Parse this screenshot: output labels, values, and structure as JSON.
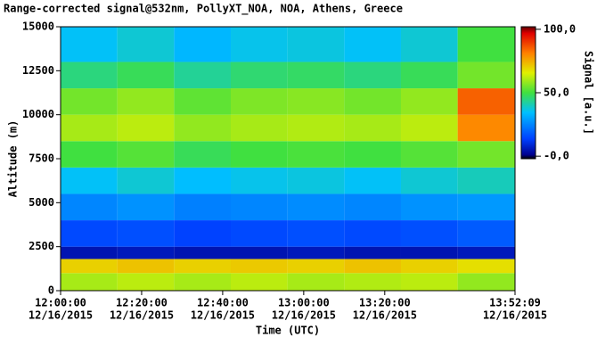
{
  "chart_data": {
    "type": "heatmap",
    "title": "Range-corrected signal@532nm, PollyXT_NOA, NOA, Athens, Greece",
    "xlabel": "Time (UTC)",
    "ylabel": "Altitude (m)",
    "colorbar_label": "Signal [a.u.]",
    "xlim": [
      0,
      112.15
    ],
    "xticks": [
      {
        "value": 0,
        "label": [
          "12:00:00",
          "12/16/2015"
        ]
      },
      {
        "value": 20,
        "label": [
          "12:20:00",
          "12/16/2015"
        ]
      },
      {
        "value": 40,
        "label": [
          "12:40:00",
          "12/16/2015"
        ]
      },
      {
        "value": 60,
        "label": [
          "13:00:00",
          "12/16/2015"
        ]
      },
      {
        "value": 80,
        "label": [
          "13:20:00",
          "12/16/2015"
        ]
      },
      {
        "value": 112.15,
        "label": [
          "13:52:09",
          "12/16/2015"
        ]
      }
    ],
    "ylim": [
      0,
      15000
    ],
    "yticks": [
      0,
      2500,
      5000,
      7500,
      10000,
      12500,
      15000
    ],
    "clim": [
      -2,
      102
    ],
    "cticks": [
      {
        "value": 0,
        "label": "-0,0"
      },
      {
        "value": 50,
        "label": "50,0"
      },
      {
        "value": 100,
        "label": "100,0"
      }
    ],
    "x_bins": [
      0,
      14,
      28,
      42,
      56,
      70,
      84,
      98,
      112.15
    ],
    "y_bins": [
      0,
      1000,
      1800,
      2500,
      4000,
      5500,
      7000,
      8500,
      10000,
      11500,
      13000,
      15000
    ],
    "values": [
      [
        60,
        62,
        60,
        62,
        60,
        61,
        62,
        58
      ],
      [
        70,
        72,
        70,
        71,
        70,
        72,
        70,
        68
      ],
      [
        5,
        6,
        5,
        5,
        6,
        5,
        5,
        6
      ],
      [
        15,
        16,
        14,
        15,
        16,
        15,
        16,
        18
      ],
      [
        25,
        27,
        24,
        25,
        26,
        25,
        27,
        28
      ],
      [
        35,
        38,
        34,
        36,
        37,
        35,
        38,
        40
      ],
      [
        50,
        52,
        48,
        50,
        51,
        50,
        52,
        55
      ],
      [
        60,
        62,
        58,
        60,
        61,
        60,
        62,
        80
      ],
      [
        55,
        58,
        53,
        56,
        57,
        55,
        58,
        85
      ],
      [
        45,
        48,
        43,
        46,
        47,
        45,
        48,
        55
      ],
      [
        35,
        38,
        33,
        36,
        37,
        35,
        38,
        50
      ]
    ]
  }
}
